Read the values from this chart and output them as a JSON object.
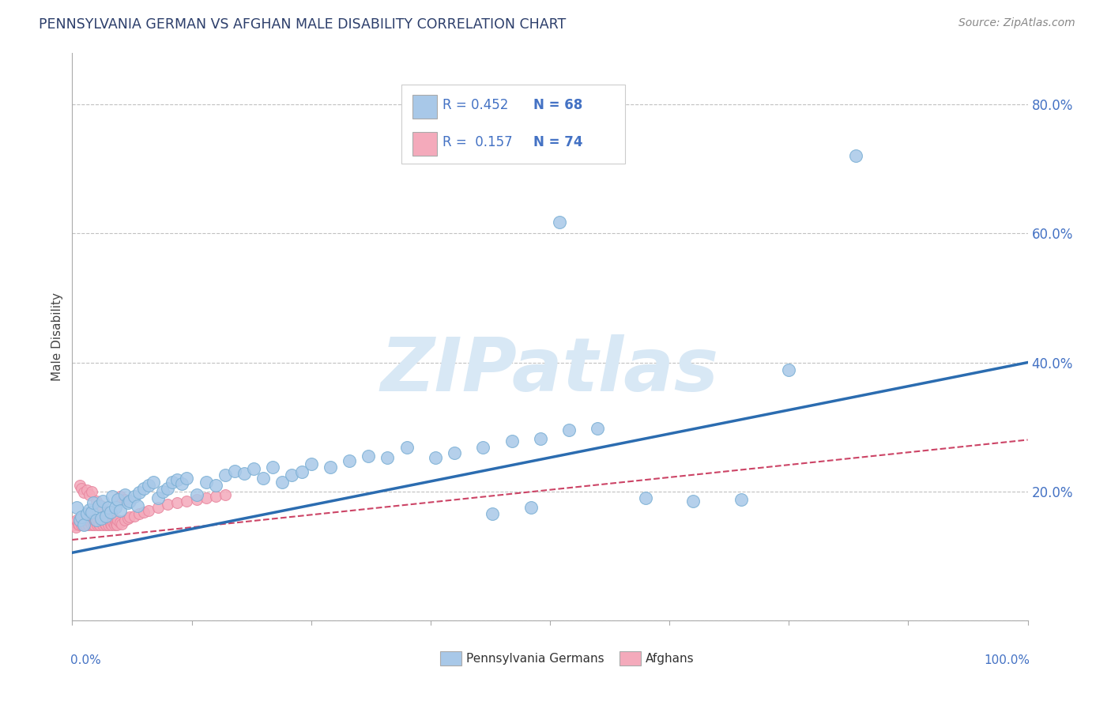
{
  "title": "PENNSYLVANIA GERMAN VS AFGHAN MALE DISABILITY CORRELATION CHART",
  "source": "Source: ZipAtlas.com",
  "ylabel": "Male Disability",
  "xlim": [
    0.0,
    1.0
  ],
  "ylim": [
    0.0,
    0.88
  ],
  "ytick_vals": [
    0.0,
    0.2,
    0.4,
    0.6,
    0.8
  ],
  "ytick_labels": [
    "",
    "20.0%",
    "40.0%",
    "60.0%",
    "80.0%"
  ],
  "blue_color": "#A8C8E8",
  "blue_edge_color": "#7AAFD4",
  "pink_color": "#F4AABB",
  "pink_edge_color": "#E888A0",
  "blue_line_color": "#2B6CB0",
  "pink_line_color": "#CC4466",
  "legend_text_color": "#4472C4",
  "axis_label_color": "#4472C4",
  "background_color": "#FFFFFF",
  "watermark_text": "ZIPatlas",
  "watermark_color": "#D8E8F5",
  "grid_color": "#BBBBBB",
  "title_color": "#2C3E6B",
  "source_color": "#888888",
  "ylabel_color": "#444444",
  "blue_line_slope": 0.295,
  "blue_line_intercept": 0.105,
  "pink_line_slope": 0.155,
  "pink_line_intercept": 0.125,
  "pg_x": [
    0.005,
    0.008,
    0.01,
    0.012,
    0.015,
    0.018,
    0.02,
    0.022,
    0.025,
    0.028,
    0.03,
    0.032,
    0.035,
    0.038,
    0.04,
    0.042,
    0.045,
    0.048,
    0.05,
    0.055,
    0.058,
    0.06,
    0.065,
    0.068,
    0.07,
    0.075,
    0.08,
    0.085,
    0.09,
    0.095,
    0.1,
    0.105,
    0.11,
    0.115,
    0.12,
    0.13,
    0.14,
    0.15,
    0.16,
    0.17,
    0.18,
    0.19,
    0.2,
    0.21,
    0.22,
    0.23,
    0.24,
    0.25,
    0.27,
    0.29,
    0.31,
    0.33,
    0.35,
    0.38,
    0.4,
    0.43,
    0.46,
    0.49,
    0.52,
    0.55,
    0.6,
    0.65,
    0.7,
    0.75,
    0.82,
    0.51,
    0.48,
    0.44
  ],
  "pg_y": [
    0.175,
    0.155,
    0.16,
    0.148,
    0.165,
    0.172,
    0.168,
    0.182,
    0.155,
    0.178,
    0.158,
    0.185,
    0.162,
    0.175,
    0.168,
    0.192,
    0.175,
    0.188,
    0.17,
    0.195,
    0.182,
    0.185,
    0.192,
    0.178,
    0.198,
    0.205,
    0.21,
    0.215,
    0.19,
    0.2,
    0.205,
    0.215,
    0.218,
    0.212,
    0.22,
    0.195,
    0.215,
    0.21,
    0.225,
    0.232,
    0.228,
    0.235,
    0.22,
    0.238,
    0.215,
    0.225,
    0.23,
    0.242,
    0.238,
    0.248,
    0.255,
    0.252,
    0.268,
    0.252,
    0.26,
    0.268,
    0.278,
    0.282,
    0.295,
    0.298,
    0.19,
    0.185,
    0.188,
    0.388,
    0.72,
    0.618,
    0.175,
    0.165
  ],
  "af_x": [
    0.002,
    0.003,
    0.004,
    0.005,
    0.006,
    0.007,
    0.008,
    0.009,
    0.01,
    0.011,
    0.012,
    0.013,
    0.014,
    0.015,
    0.016,
    0.017,
    0.018,
    0.019,
    0.02,
    0.021,
    0.022,
    0.023,
    0.024,
    0.025,
    0.026,
    0.027,
    0.028,
    0.029,
    0.03,
    0.031,
    0.032,
    0.033,
    0.034,
    0.035,
    0.036,
    0.037,
    0.038,
    0.039,
    0.04,
    0.041,
    0.042,
    0.043,
    0.044,
    0.045,
    0.046,
    0.047,
    0.048,
    0.05,
    0.052,
    0.055,
    0.058,
    0.06,
    0.065,
    0.07,
    0.075,
    0.08,
    0.09,
    0.1,
    0.11,
    0.12,
    0.13,
    0.14,
    0.15,
    0.16,
    0.05,
    0.055,
    0.008,
    0.01,
    0.012,
    0.015,
    0.018,
    0.02,
    0.025,
    0.03
  ],
  "af_y": [
    0.148,
    0.152,
    0.145,
    0.155,
    0.15,
    0.148,
    0.155,
    0.152,
    0.148,
    0.155,
    0.15,
    0.152,
    0.148,
    0.155,
    0.15,
    0.148,
    0.155,
    0.152,
    0.148,
    0.155,
    0.15,
    0.148,
    0.155,
    0.152,
    0.148,
    0.155,
    0.15,
    0.148,
    0.155,
    0.152,
    0.148,
    0.155,
    0.15,
    0.148,
    0.155,
    0.152,
    0.148,
    0.155,
    0.15,
    0.148,
    0.155,
    0.152,
    0.148,
    0.155,
    0.15,
    0.148,
    0.155,
    0.152,
    0.15,
    0.155,
    0.158,
    0.16,
    0.162,
    0.165,
    0.168,
    0.17,
    0.175,
    0.18,
    0.182,
    0.185,
    0.188,
    0.19,
    0.192,
    0.195,
    0.192,
    0.188,
    0.21,
    0.205,
    0.198,
    0.202,
    0.195,
    0.2,
    0.185,
    0.178
  ]
}
